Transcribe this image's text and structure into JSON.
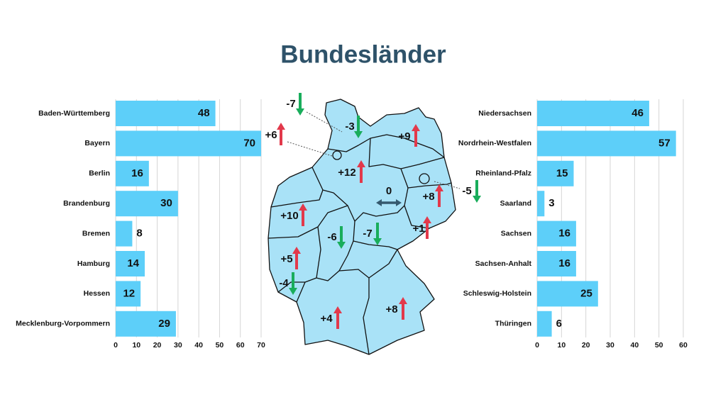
{
  "title": "Bundesländer",
  "chart_data": [
    {
      "type": "bar",
      "orientation": "horizontal",
      "color": "#5dcff9",
      "grid": true,
      "categories": [
        "Baden-Württemberg",
        "Bayern",
        "Berlin",
        "Brandenburg",
        "Bremen",
        "Hamburg",
        "Hessen",
        "Mecklenburg-Vorpommern"
      ],
      "values": [
        48,
        70,
        16,
        30,
        8,
        14,
        12,
        29
      ],
      "xlim": [
        0,
        70
      ],
      "xticks": [
        0,
        10,
        20,
        30,
        40,
        50,
        60,
        70
      ]
    },
    {
      "type": "bar",
      "orientation": "horizontal",
      "color": "#5dcff9",
      "grid": true,
      "categories": [
        "Niedersachsen",
        "Nordrhein-Westfalen",
        "Rheinland-Pfalz",
        "Saarland",
        "Sachsen",
        "Sachsen-Anhalt",
        "Schleswig-Holstein",
        "Thüringen"
      ],
      "values": [
        46,
        57,
        15,
        3,
        16,
        16,
        25,
        6
      ],
      "xlim": [
        0,
        60
      ],
      "xticks": [
        0,
        10,
        20,
        30,
        40,
        50,
        60
      ]
    }
  ],
  "map": {
    "changes": [
      {
        "value": -7,
        "label": "-7"
      },
      {
        "value": -3,
        "label": "-3"
      },
      {
        "value": 9,
        "label": "+9"
      },
      {
        "value": 6,
        "label": "+6"
      },
      {
        "value": 12,
        "label": "+12"
      },
      {
        "value": 0,
        "label": "0"
      },
      {
        "value": 8,
        "label": "+8"
      },
      {
        "value": -5,
        "label": "-5"
      },
      {
        "value": 10,
        "label": "+10"
      },
      {
        "value": 1,
        "label": "+1"
      },
      {
        "value": -6,
        "label": "-6"
      },
      {
        "value": -7,
        "label": "-7"
      },
      {
        "value": 5,
        "label": "+5"
      },
      {
        "value": -4,
        "label": "-4"
      },
      {
        "value": 4,
        "label": "+4"
      },
      {
        "value": 8,
        "label": "+8"
      }
    ]
  }
}
